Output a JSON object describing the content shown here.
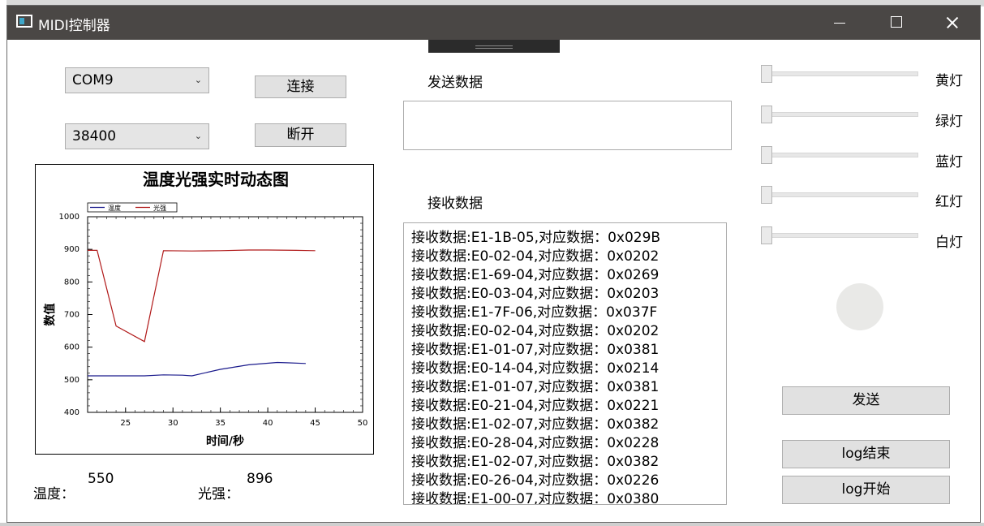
{
  "window": {
    "title": "MIDI控制器"
  },
  "serial": {
    "port": "COM9",
    "baud": "38400",
    "connect_label": "连接",
    "disconnect_label": "断开"
  },
  "send": {
    "label": "发送数据",
    "value": "",
    "button_label": "发送"
  },
  "receive": {
    "label": "接收数据",
    "lines": [
      "接收数据:E1-1B-05,对应数据：0x029B",
      "接收数据:E0-02-04,对应数据：0x0202",
      "接收数据:E1-69-04,对应数据：0x0269",
      "接收数据:E0-03-04,对应数据：0x0203",
      "接收数据:E1-7F-06,对应数据：0x037F",
      "接收数据:E0-02-04,对应数据：0x0202",
      "接收数据:E1-01-07,对应数据：0x0381",
      "接收数据:E0-14-04,对应数据：0x0214",
      "接收数据:E1-01-07,对应数据：0x0381",
      "接收数据:E0-21-04,对应数据：0x0221",
      "接收数据:E1-02-07,对应数据：0x0382",
      "接收数据:E0-28-04,对应数据：0x0228",
      "接收数据:E1-02-07,对应数据：0x0382",
      "接收数据:E0-26-04,对应数据：0x0226",
      "接收数据:E1-00-07,对应数据：0x0380"
    ]
  },
  "lights": [
    {
      "label": "黄灯",
      "value": 0
    },
    {
      "label": "绿灯",
      "value": 0
    },
    {
      "label": "蓝灯",
      "value": 0
    },
    {
      "label": "红灯",
      "value": 0
    },
    {
      "label": "白灯",
      "value": 0
    }
  ],
  "log": {
    "end_label": "log结束",
    "start_label": "log开始"
  },
  "readings": {
    "temp_label": "温度：",
    "temp_value": "550",
    "light_label": "光强：",
    "light_value": "896"
  },
  "chart_data": {
    "type": "line",
    "title": "温度光强实时动态图",
    "xlabel": "时间/秒",
    "ylabel": "数值",
    "xlim": [
      21,
      50
    ],
    "ylim": [
      400,
      1000
    ],
    "xticks": [
      25,
      30,
      35,
      40,
      45,
      50
    ],
    "yticks": [
      400,
      500,
      600,
      700,
      800,
      900,
      1000
    ],
    "legend_position": "top-left",
    "grid": false,
    "series": [
      {
        "name": "温度",
        "color": "#1a1a8c",
        "x": [
          21,
          24,
          27,
          29,
          31,
          32,
          35,
          38,
          41,
          42,
          44
        ],
        "y": [
          512,
          512,
          512,
          515,
          514,
          512,
          532,
          546,
          553,
          552,
          550
        ]
      },
      {
        "name": "光强",
        "color": "#b01818",
        "x": [
          21,
          22,
          24,
          27,
          29,
          32,
          35,
          38,
          40,
          43,
          45
        ],
        "y": [
          897,
          897,
          665,
          617,
          896,
          895,
          896,
          898,
          898,
          897,
          896
        ]
      }
    ]
  }
}
